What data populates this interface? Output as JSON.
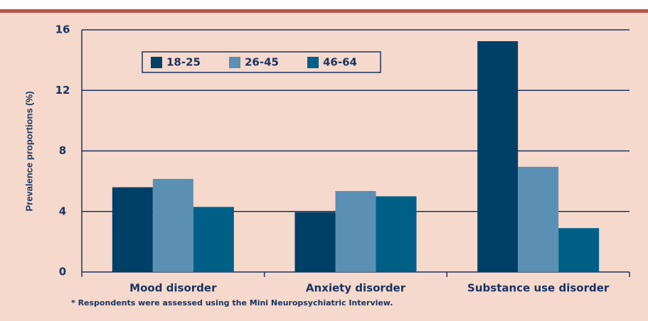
{
  "chart_data": {
    "type": "bar",
    "y_label": "Prevalence proportions (%)",
    "footnote": "* Respondents were assessed using the Mini Neuropsychiatric Interview.",
    "categories": [
      "Mood disorder",
      "Anxiety disorder",
      "Substance use disorder"
    ],
    "series": [
      {
        "name": "18-25",
        "color": "#003f66",
        "values": [
          5.6,
          3.95,
          15.25
        ]
      },
      {
        "name": "26-45",
        "color": "#5b8fb4",
        "values": [
          6.15,
          5.35,
          6.95
        ]
      },
      {
        "name": "46-64",
        "color": "#005f87",
        "values": [
          4.3,
          5.0,
          2.9
        ]
      }
    ],
    "ylim": [
      0,
      16
    ],
    "yticks": [
      0,
      4,
      8,
      12,
      16
    ],
    "grid": true
  }
}
